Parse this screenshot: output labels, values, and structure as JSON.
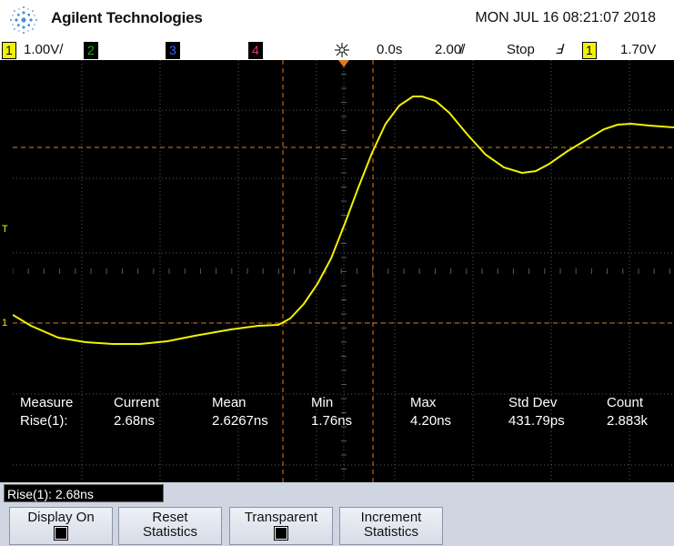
{
  "header": {
    "brand": "Agilent Technologies",
    "datetime": "MON JUL 16 08:21:07 2018"
  },
  "status": {
    "ch1_label": "1",
    "ch1_scale": "1.00V/",
    "ch2_label": "2",
    "ch3_label": "3",
    "ch4_label": "4",
    "time_offset": "0.0s",
    "time_scale": "2.00̸/",
    "run_state": "Stop",
    "trig_edge": "Ⅎ",
    "trig_channel": "1",
    "trig_level": "1.70V",
    "colors": {
      "ch1": "#f2f200",
      "ch2": "#00c800",
      "ch3": "#3060ff",
      "ch4": "#e03080"
    }
  },
  "screen": {
    "trigger_marker": "T",
    "ground_marker": "1"
  },
  "measurements": {
    "row_label": "Rise(1):",
    "columns": [
      {
        "header": "Measure",
        "value": "Rise(1):"
      },
      {
        "header": "Current",
        "value": "2.68ns"
      },
      {
        "header": "Mean",
        "value": "2.6267ns"
      },
      {
        "header": "Min",
        "value": "1.76ns"
      },
      {
        "header": "Max",
        "value": "4.20ns"
      },
      {
        "header": "Std Dev",
        "value": "431.79ps"
      },
      {
        "header": "Count",
        "value": "2.883k"
      }
    ]
  },
  "footer": {
    "readout": "Rise(1): 2.68ns",
    "softkeys": [
      {
        "line1": "Display On",
        "line2": ""
      },
      {
        "line1": "Reset",
        "line2": "Statistics"
      },
      {
        "line1": "Transparent",
        "line2": ""
      },
      {
        "line1": "Increment",
        "line2": "Statistics"
      }
    ]
  }
}
